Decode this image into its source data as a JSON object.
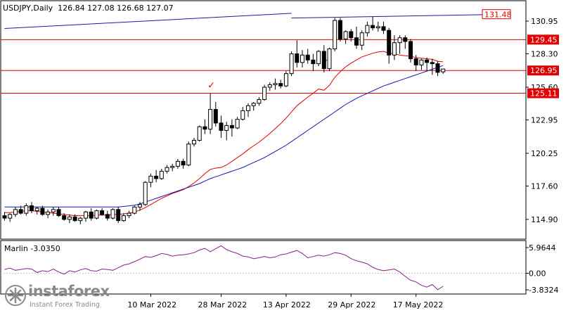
{
  "header": {
    "symbol_line": "USDJPY,Daily  126.84 127.08 126.68 127.07",
    "indicator_line": "Marlin -3.0350"
  },
  "watermark": {
    "brand": "instaforex",
    "tagline": "Instant Forex Trading"
  },
  "colors": {
    "candle": "#000000",
    "red_level": "#e00000",
    "ma_red": "#e00000",
    "ma_blue": "#1515b0",
    "trend_blue": "#1a1aa0",
    "oscillator": "#8b1e8b",
    "axis_label_bg": "#e00000"
  },
  "chart_data": [
    {
      "type": "candlestick",
      "title": "USDJPY,Daily",
      "ohlc_last": {
        "open": 126.84,
        "high": 127.08,
        "low": 126.68,
        "close": 127.07
      },
      "y_ticks": [
        130.95,
        128.3,
        125.6,
        122.95,
        120.25,
        117.6,
        114.9
      ],
      "ylim": [
        113.3,
        132.6
      ],
      "x_ticks": [
        "10 Mar 2022",
        "28 Mar 2022",
        "13 Apr 2022",
        "29 Apr 2022",
        "17 May 2022"
      ],
      "x_tick_index": [
        27,
        40,
        52,
        64,
        76
      ],
      "grid": false,
      "price_labels": [
        {
          "label": "131.48",
          "value": 131.48,
          "style": "outline"
        },
        {
          "label": "129.45",
          "value": 129.45,
          "style": "filled"
        },
        {
          "label": "126.95",
          "value": 126.95,
          "style": "filled"
        },
        {
          "label": "125.11",
          "value": 125.11,
          "style": "filled"
        }
      ],
      "horizontal_levels": [
        129.45,
        126.95,
        125.11
      ],
      "trend_lines": [
        {
          "from": [
            0,
            130.35
          ],
          "to": [
            53,
            131.58
          ]
        },
        {
          "from": [
            53,
            131.2
          ],
          "to": [
            90,
            131.48
          ]
        }
      ],
      "markers": [
        {
          "symbol": "✓",
          "index": 38,
          "value": 125.5
        },
        {
          "symbol": "✓",
          "index": 59,
          "value": 127.35
        }
      ],
      "candles": [
        [
          115.2,
          115.5,
          114.8,
          115.0
        ],
        [
          115.0,
          115.4,
          114.7,
          115.3
        ],
        [
          115.3,
          115.9,
          115.1,
          115.7
        ],
        [
          115.7,
          116.0,
          115.3,
          115.4
        ],
        [
          115.4,
          116.2,
          115.2,
          116.0
        ],
        [
          116.0,
          116.3,
          115.4,
          115.6
        ],
        [
          115.6,
          115.9,
          115.3,
          115.8
        ],
        [
          115.8,
          116.0,
          115.2,
          115.3
        ],
        [
          115.3,
          115.7,
          115.0,
          115.5
        ],
        [
          115.5,
          115.9,
          115.2,
          115.7
        ],
        [
          115.7,
          115.9,
          115.1,
          115.2
        ],
        [
          115.2,
          115.4,
          114.8,
          114.9
        ],
        [
          114.9,
          115.3,
          114.6,
          115.1
        ],
        [
          115.1,
          115.3,
          114.7,
          114.8
        ],
        [
          114.8,
          115.1,
          114.5,
          115.0
        ],
        [
          115.0,
          115.6,
          114.7,
          115.5
        ],
        [
          115.5,
          115.8,
          114.8,
          115.0
        ],
        [
          115.0,
          115.7,
          114.9,
          115.6
        ],
        [
          115.6,
          115.8,
          115.2,
          115.3
        ],
        [
          115.3,
          115.6,
          114.8,
          115.0
        ],
        [
          115.0,
          115.8,
          114.9,
          115.7
        ],
        [
          115.7,
          115.9,
          114.6,
          114.8
        ],
        [
          114.8,
          115.4,
          114.7,
          115.2
        ],
        [
          115.2,
          115.6,
          115.0,
          115.4
        ],
        [
          115.4,
          116.0,
          115.3,
          115.9
        ],
        [
          115.9,
          116.3,
          115.6,
          116.1
        ],
        [
          116.1,
          118.0,
          116.0,
          117.9
        ],
        [
          117.9,
          118.6,
          117.5,
          118.4
        ],
        [
          118.4,
          118.9,
          117.9,
          118.2
        ],
        [
          118.2,
          119.0,
          118.1,
          118.8
        ],
        [
          118.8,
          119.3,
          118.6,
          119.1
        ],
        [
          119.1,
          119.4,
          118.8,
          119.2
        ],
        [
          119.2,
          119.8,
          119.0,
          119.6
        ],
        [
          119.6,
          119.8,
          119.0,
          119.3
        ],
        [
          119.3,
          121.2,
          119.2,
          121.0
        ],
        [
          121.0,
          121.5,
          120.8,
          121.3
        ],
        [
          121.3,
          122.5,
          121.2,
          122.4
        ],
        [
          122.4,
          123.0,
          121.8,
          122.2
        ],
        [
          122.2,
          125.1,
          121.8,
          123.8
        ],
        [
          123.8,
          124.4,
          122.4,
          122.7
        ],
        [
          122.7,
          123.3,
          121.5,
          122.1
        ],
        [
          122.1,
          122.8,
          121.3,
          122.5
        ],
        [
          122.5,
          123.0,
          121.6,
          122.3
        ],
        [
          122.3,
          123.2,
          122.2,
          123.0
        ],
        [
          123.0,
          124.0,
          122.9,
          123.7
        ],
        [
          123.7,
          124.3,
          123.2,
          124.1
        ],
        [
          124.1,
          124.4,
          123.7,
          124.3
        ],
        [
          124.3,
          124.8,
          124.1,
          124.6
        ],
        [
          124.6,
          125.8,
          124.5,
          125.6
        ],
        [
          125.6,
          126.0,
          125.3,
          125.8
        ],
        [
          125.8,
          126.3,
          125.4,
          125.9
        ],
        [
          125.9,
          126.2,
          125.5,
          125.7
        ],
        [
          125.7,
          126.9,
          125.6,
          126.7
        ],
        [
          126.7,
          128.5,
          126.5,
          128.3
        ],
        [
          128.3,
          129.4,
          127.2,
          127.6
        ],
        [
          127.6,
          128.6,
          127.2,
          128.2
        ],
        [
          128.2,
          128.7,
          127.5,
          127.8
        ],
        [
          127.8,
          128.3,
          126.9,
          127.5
        ],
        [
          127.5,
          128.6,
          127.3,
          128.5
        ],
        [
          128.5,
          129.0,
          126.8,
          127.1
        ],
        [
          127.1,
          128.8,
          126.9,
          128.7
        ],
        [
          128.7,
          131.2,
          128.5,
          131.0
        ],
        [
          131.0,
          131.2,
          129.3,
          129.5
        ],
        [
          129.5,
          130.2,
          129.1,
          130.1
        ],
        [
          130.1,
          130.3,
          129.3,
          129.6
        ],
        [
          129.6,
          130.5,
          128.7,
          129.0
        ],
        [
          129.0,
          130.2,
          128.6,
          130.0
        ],
        [
          130.0,
          130.9,
          129.7,
          130.6
        ],
        [
          130.6,
          131.3,
          130.2,
          130.4
        ],
        [
          130.4,
          130.9,
          130.1,
          130.5
        ],
        [
          130.5,
          130.9,
          129.9,
          130.2
        ],
        [
          130.2,
          130.4,
          127.5,
          128.2
        ],
        [
          128.2,
          129.8,
          127.8,
          129.2
        ],
        [
          129.2,
          129.8,
          128.3,
          129.6
        ],
        [
          129.6,
          129.8,
          128.7,
          129.3
        ],
        [
          129.3,
          129.5,
          127.6,
          127.9
        ],
        [
          127.9,
          128.2,
          126.9,
          127.4
        ],
        [
          127.4,
          127.9,
          127.0,
          127.8
        ],
        [
          127.8,
          128.0,
          126.9,
          127.6
        ],
        [
          127.6,
          127.9,
          126.6,
          127.5
        ],
        [
          127.5,
          127.7,
          126.5,
          126.8
        ],
        [
          126.84,
          127.08,
          126.68,
          127.07
        ]
      ],
      "series": [
        {
          "style": "red moving average",
          "values": [
            115.45,
            115.45,
            115.5,
            115.55,
            115.6,
            115.6,
            115.55,
            115.5,
            115.45,
            115.4,
            115.35,
            115.3,
            115.25,
            115.2,
            115.2,
            115.2,
            115.2,
            115.25,
            115.25,
            115.25,
            115.3,
            115.3,
            115.35,
            115.4,
            115.5,
            115.65,
            115.85,
            116.1,
            116.35,
            116.6,
            116.8,
            117.0,
            117.15,
            117.3,
            117.55,
            117.85,
            118.2,
            118.6,
            118.95,
            119.05,
            119.1,
            119.3,
            119.6,
            119.9,
            120.2,
            120.55,
            120.85,
            121.15,
            121.5,
            121.85,
            122.25,
            122.65,
            123.1,
            123.6,
            124.1,
            124.45,
            124.8,
            125.1,
            125.45,
            125.35,
            125.75,
            126.4,
            126.85,
            127.25,
            127.55,
            127.8,
            128.05,
            128.2,
            128.35,
            128.45,
            128.5,
            128.35,
            128.3,
            128.2,
            128.15,
            128.1,
            128.0,
            127.95,
            127.9,
            127.85,
            127.7,
            127.65
          ]
        },
        {
          "style": "blue moving average",
          "values": [
            115.9,
            115.9,
            115.9,
            115.9,
            115.9,
            115.9,
            115.9,
            115.9,
            115.9,
            115.9,
            115.9,
            115.9,
            115.9,
            115.9,
            115.9,
            115.9,
            115.9,
            115.9,
            115.9,
            115.9,
            115.9,
            115.9,
            115.95,
            116.0,
            116.05,
            116.15,
            116.3,
            116.45,
            116.6,
            116.75,
            116.9,
            117.05,
            117.2,
            117.35,
            117.5,
            117.65,
            117.8,
            118.0,
            118.2,
            118.35,
            118.5,
            118.65,
            118.8,
            118.95,
            119.1,
            119.3,
            119.5,
            119.7,
            119.9,
            120.15,
            120.4,
            120.65,
            120.9,
            121.2,
            121.5,
            121.8,
            122.1,
            122.4,
            122.7,
            123.0,
            123.3,
            123.6,
            123.9,
            124.2,
            124.45,
            124.7,
            124.9,
            125.1,
            125.3,
            125.5,
            125.7,
            125.85,
            126.0,
            126.15,
            126.3,
            126.45,
            126.6,
            126.75,
            126.9,
            127.05,
            127.2,
            127.35
          ]
        }
      ]
    },
    {
      "type": "line",
      "title": "Marlin",
      "current_value": -3.035,
      "y_ticks": [
        5.9644,
        0.0,
        -3.8324
      ],
      "ylim": [
        -4.8,
        7.6
      ],
      "series": [
        {
          "values": [
            0.9,
            1.2,
            0.7,
            0.9,
            1.1,
            1.0,
            0.2,
            0.6,
            0.4,
            1.0,
            0.3,
            -0.2,
            0.6,
            0.3,
            0.8,
            1.1,
            0.6,
            0.5,
            1.0,
            0.9,
            0.7,
            1.3,
            1.9,
            2.2,
            2.7,
            3.3,
            3.9,
            3.7,
            4.1,
            4.6,
            4.4,
            4.0,
            4.2,
            4.3,
            4.5,
            4.8,
            5.4,
            5.8,
            5.0,
            5.7,
            6.4,
            5.5,
            5.0,
            4.6,
            4.0,
            3.8,
            3.4,
            3.6,
            3.9,
            3.6,
            3.8,
            4.3,
            4.5,
            4.9,
            5.3,
            4.6,
            3.6,
            3.9,
            4.2,
            4.0,
            4.3,
            4.8,
            4.6,
            4.2,
            3.4,
            2.9,
            2.6,
            2.2,
            1.4,
            0.9,
            0.6,
            0.8,
            1.0,
            0.3,
            -0.7,
            -1.6,
            -2.0,
            -2.8,
            -3.2,
            -2.6,
            -3.8,
            -3.0
          ]
        }
      ]
    }
  ]
}
